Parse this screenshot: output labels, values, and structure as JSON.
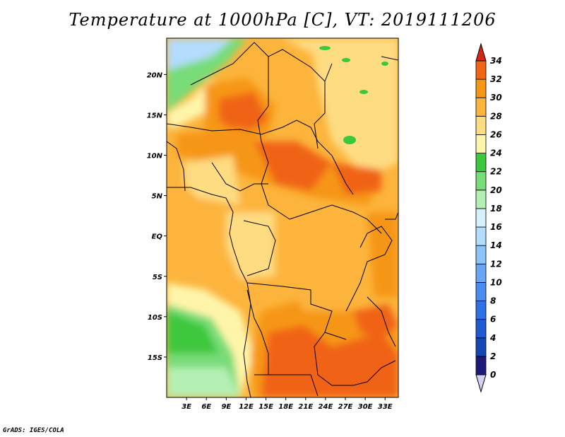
{
  "title": "Temperature at 1000hPa [C], VT: 2019111206",
  "credit": "GrADS: IGES/COLA",
  "lat_labels": [
    "20N",
    "15N",
    "10N",
    "5N",
    "EQ",
    "5S",
    "10S",
    "15S"
  ],
  "lat_values": [
    20,
    15,
    10,
    5,
    0,
    -5,
    -10,
    -15
  ],
  "lon_labels": [
    "3E",
    "6E",
    "9E",
    "12E",
    "15E",
    "18E",
    "21E",
    "24E",
    "27E",
    "30E",
    "33E"
  ],
  "lon_values": [
    3,
    6,
    9,
    12,
    15,
    18,
    21,
    24,
    27,
    30,
    33
  ],
  "map_extent": {
    "lon_min": 0,
    "lon_max": 35,
    "lat_min": -20,
    "lat_max": 24.5
  },
  "colorbar": {
    "levels": [
      0,
      2,
      4,
      6,
      8,
      10,
      12,
      14,
      16,
      18,
      20,
      22,
      24,
      26,
      28,
      30,
      32,
      34
    ],
    "colors": [
      "#1a1a7a",
      "#1446b4",
      "#1e5ad2",
      "#2e70e6",
      "#4a8cf0",
      "#6aa6f6",
      "#8cc4fa",
      "#b4dcfc",
      "#d6f0fc",
      "#b4f0b4",
      "#78dc78",
      "#3cc83c",
      "#fff5aa",
      "#fedc82",
      "#fcb43c",
      "#f69614",
      "#f06414",
      "#e63c14",
      "#d22814"
    ]
  }
}
